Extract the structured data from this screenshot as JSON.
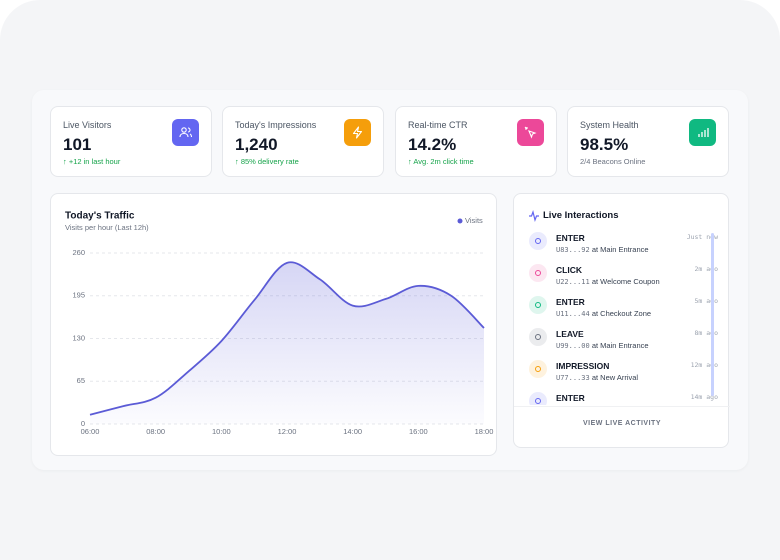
{
  "stats": [
    {
      "label": "Live Visitors",
      "value": "101",
      "delta": "↑ +12 in last hour",
      "color": "#6366f1"
    },
    {
      "label": "Today's Impressions",
      "value": "1,240",
      "delta": "↑ 85% delivery rate",
      "color": "#f59e0b"
    },
    {
      "label": "Real-time CTR",
      "value": "14.2%",
      "delta": "↑ Avg. 2m click time",
      "color": "#ec4899"
    },
    {
      "label": "System Health",
      "value": "98.5%",
      "delta": "2/4 Beacons Online",
      "color": "#10b981"
    }
  ],
  "chart_data": {
    "type": "area",
    "title": "Today's Traffic",
    "subtitle": "Visits per hour (Last 12h)",
    "categories": [
      "06:00",
      null,
      "08:00",
      null,
      "10:00",
      null,
      "12:00",
      null,
      "14:00",
      null,
      "16:00",
      null,
      "18:00"
    ],
    "series": [
      {
        "name": "Visits",
        "color": "#5b5bd6",
        "values": [
          14,
          27,
          40,
          80,
          126,
          188,
          245,
          220,
          180,
          190,
          210,
          195,
          146
        ]
      }
    ],
    "ylim": [
      0,
      260
    ],
    "yticks": [
      0,
      65,
      130,
      195,
      260
    ],
    "grid": true,
    "legend": "top-right"
  },
  "live": {
    "title": "Live Interactions",
    "connector": "at",
    "action": "VIEW LIVE ACTIVITY",
    "items": [
      {
        "event": "ENTER",
        "id": "U83...92",
        "location": "Main Entrance",
        "time": "Just now",
        "color": "#6366f1"
      },
      {
        "event": "CLICK",
        "id": "U22...11",
        "location": "Welcome Coupon",
        "time": "2m ago",
        "color": "#ec4899"
      },
      {
        "event": "ENTER",
        "id": "U11...44",
        "location": "Checkout Zone",
        "time": "5m ago",
        "color": "#10b981"
      },
      {
        "event": "LEAVE",
        "id": "U99...00",
        "location": "Main Entrance",
        "time": "8m ago",
        "color": "#6b7280"
      },
      {
        "event": "IMPRESSION",
        "id": "U77...33",
        "location": "New Arrival",
        "time": "12m ago",
        "color": "#f59e0b"
      },
      {
        "event": "ENTER",
        "id": "",
        "location": "",
        "time": "14m ago",
        "color": "#6366f1"
      }
    ]
  }
}
